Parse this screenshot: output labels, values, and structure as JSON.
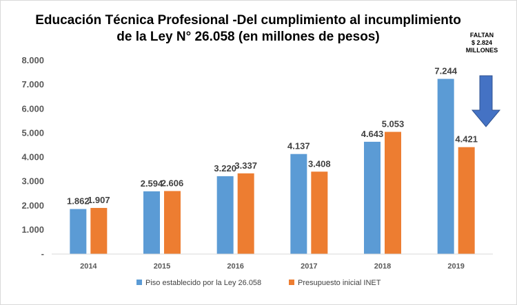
{
  "chart_data": {
    "type": "bar",
    "title_line1": "Educación Técnica Profesional -Del cumplimiento al incumplimiento",
    "title_line2": "de la Ley N° 26.058  (en millones de pesos)",
    "categories": [
      "2014",
      "2015",
      "2016",
      "2017",
      "2018",
      "2019"
    ],
    "series": [
      {
        "name": "Piso establecido por la Ley 26.058",
        "color": "#5b9bd5",
        "values": [
          1862,
          2594,
          3220,
          4137,
          4643,
          7244
        ],
        "labels": [
          "1.862",
          "2.594",
          "3.220",
          "4.137",
          "4.643",
          "7.244"
        ]
      },
      {
        "name": "Presupuesto inicial INET",
        "color": "#ed7d31",
        "values": [
          1907,
          2606,
          3337,
          3408,
          5053,
          4421
        ],
        "labels": [
          "1.907",
          "2.606",
          "3.337",
          "3.408",
          "5.053",
          "4.421"
        ]
      }
    ],
    "ylim": [
      0,
      8000
    ],
    "yticks": [
      0,
      1000,
      2000,
      3000,
      4000,
      5000,
      6000,
      7000,
      8000
    ],
    "ytick_labels": [
      "-",
      "1.000",
      "2.000",
      "3.000",
      "4.000",
      "5.000",
      "6.000",
      "7.000",
      "8.000"
    ],
    "grid": false,
    "legend_position": "bottom",
    "annotation": {
      "lines": [
        "FALTAN",
        "$ 2.824",
        "MILLONES"
      ],
      "arrow_color": "#4472c4",
      "arrow_direction": "down"
    }
  }
}
